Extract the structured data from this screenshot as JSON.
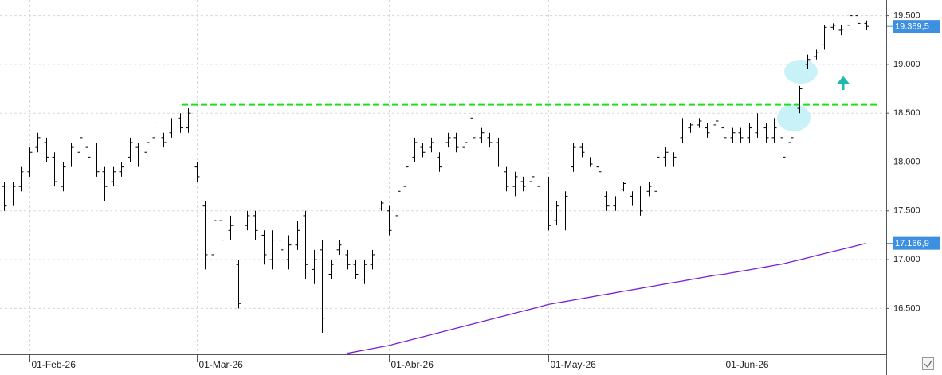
{
  "chart_data": {
    "type": "ohlc",
    "categories": [
      null,
      null,
      null,
      "01-Feb-26",
      null,
      null,
      null,
      null,
      null,
      null,
      null,
      null,
      null,
      null,
      null,
      null,
      null,
      null,
      null,
      null,
      null,
      null,
      null,
      "01-Mar-26",
      null,
      null,
      null,
      null,
      null,
      null,
      null,
      null,
      null,
      null,
      null,
      null,
      null,
      null,
      null,
      null,
      null,
      null,
      null,
      null,
      null,
      null,
      "01-Abr-26",
      null,
      null,
      null,
      null,
      null,
      null,
      null,
      null,
      null,
      null,
      null,
      null,
      null,
      null,
      null,
      null,
      null,
      null,
      "01-May-26",
      null,
      null,
      null,
      null,
      null,
      null,
      null,
      null,
      null,
      null,
      null,
      null,
      null,
      null,
      null,
      null,
      null,
      null,
      null,
      null,
      "01-Jun-26",
      null,
      null,
      null,
      null,
      null,
      null,
      null,
      null,
      null,
      null,
      null,
      null,
      null,
      null,
      null,
      null,
      null
    ],
    "ohlc": {
      "color": "#000000",
      "open": [
        17750,
        17600,
        17750,
        17900,
        18150,
        18200,
        18050,
        17750,
        18000,
        18100,
        18150,
        18000,
        17900,
        17800,
        17900,
        18050,
        18150,
        18100,
        18250,
        18250,
        18300,
        18450,
        18350,
        17950,
        17550,
        17050,
        17400,
        17300,
        16950,
        17350,
        17450,
        17250,
        17000,
        17200,
        17000,
        17150,
        17450,
        16900,
        17100,
        16850,
        17100,
        17050,
        16950,
        16800,
        16950,
        17520,
        17500,
        17450,
        17750,
        18050,
        18150,
        18150,
        18050,
        18200,
        18250,
        18150,
        18450,
        18250,
        18250,
        18200,
        17900,
        17750,
        17800,
        17800,
        17750,
        17600,
        17400,
        17600,
        17950,
        18150,
        18000,
        17950,
        17650,
        17550,
        17720,
        17650,
        17600,
        17700,
        17700,
        18050,
        18000,
        18250,
        18350,
        18380,
        18350,
        18380,
        18350,
        18250,
        18300,
        18250,
        18300,
        18350,
        18250,
        18250,
        18200,
        18550,
        19000,
        19080,
        19200,
        19380,
        19350,
        19400,
        19500,
        19420
      ],
      "high": [
        17800,
        17800,
        17950,
        18150,
        18300,
        18250,
        18100,
        18000,
        18200,
        18300,
        18200,
        18200,
        17950,
        17950,
        18000,
        18250,
        18200,
        18250,
        18450,
        18300,
        18450,
        18500,
        18550,
        18000,
        17600,
        17500,
        17700,
        17450,
        17000,
        17500,
        17500,
        17300,
        17300,
        17250,
        17250,
        17400,
        17500,
        17100,
        17200,
        17000,
        17200,
        17100,
        17000,
        17000,
        17100,
        17600,
        17550,
        17750,
        18000,
        18250,
        18200,
        18250,
        18100,
        18300,
        18300,
        18250,
        18500,
        18350,
        18300,
        18250,
        17950,
        17900,
        17850,
        17900,
        17800,
        17850,
        17600,
        17700,
        18200,
        18200,
        18050,
        18000,
        17700,
        17650,
        17800,
        17700,
        17750,
        17800,
        18100,
        18150,
        18100,
        18450,
        18400,
        18450,
        18400,
        18450,
        18400,
        18350,
        18350,
        18400,
        18500,
        18400,
        18450,
        18300,
        18300,
        18780,
        19100,
        19150,
        19400,
        19420,
        19400,
        19560,
        19550,
        19450
      ],
      "low": [
        17500,
        17550,
        17700,
        17850,
        18100,
        18000,
        17750,
        17700,
        17950,
        18050,
        18000,
        17850,
        17600,
        17750,
        17850,
        18000,
        17950,
        18050,
        18200,
        18150,
        18250,
        18300,
        18300,
        17800,
        16900,
        16900,
        17100,
        17200,
        16500,
        17300,
        17200,
        16950,
        16900,
        17000,
        16900,
        17100,
        16800,
        16750,
        16250,
        16800,
        17050,
        16900,
        16800,
        16750,
        16900,
        17500,
        17250,
        17400,
        17700,
        18000,
        18050,
        18100,
        17900,
        18150,
        18100,
        18100,
        18100,
        18200,
        18150,
        17950,
        17700,
        17650,
        17700,
        17750,
        17550,
        17300,
        17350,
        17300,
        17900,
        18050,
        17950,
        17850,
        17500,
        17500,
        17700,
        17550,
        17450,
        17650,
        17650,
        17950,
        17950,
        18200,
        18300,
        18350,
        18250,
        18350,
        18100,
        18200,
        18200,
        18200,
        18250,
        18200,
        18200,
        17950,
        18150,
        18500,
        18950,
        19050,
        19150,
        19350,
        19300,
        19350,
        19350,
        19350
      ],
      "close": [
        17550,
        17750,
        17900,
        18100,
        18250,
        18050,
        17800,
        17950,
        18150,
        18250,
        18050,
        17900,
        17750,
        17900,
        17950,
        18200,
        18000,
        18200,
        18400,
        18200,
        18400,
        18350,
        18500,
        17850,
        17050,
        17400,
        17200,
        17350,
        16550,
        17450,
        17300,
        17050,
        17200,
        17100,
        17150,
        17300,
        16950,
        17000,
        16400,
        16950,
        17150,
        16950,
        16850,
        16950,
        17050,
        17580,
        17300,
        17700,
        17950,
        18200,
        18100,
        18200,
        17950,
        18250,
        18150,
        18200,
        18250,
        18300,
        18200,
        18000,
        17750,
        17850,
        17750,
        17850,
        17600,
        17350,
        17550,
        17650,
        18150,
        18100,
        17980,
        17900,
        17550,
        17600,
        17780,
        17600,
        17500,
        17750,
        18050,
        18100,
        18050,
        18400,
        18380,
        18420,
        18300,
        18420,
        18250,
        18300,
        18250,
        18350,
        18400,
        18250,
        18350,
        18050,
        18250,
        18750,
        19050,
        19120,
        19380,
        19400,
        19360,
        19500,
        19420,
        19389.5
      ]
    },
    "lines": [
      {
        "color": "#7b1fd6",
        "values": [
          null,
          null,
          null,
          null,
          null,
          null,
          null,
          null,
          null,
          null,
          null,
          null,
          null,
          null,
          null,
          null,
          null,
          null,
          null,
          null,
          null,
          null,
          null,
          null,
          null,
          null,
          null,
          null,
          null,
          null,
          null,
          null,
          null,
          null,
          null,
          null,
          null,
          null,
          null,
          null,
          null,
          16040,
          16056,
          16072,
          16088,
          16104,
          16120,
          16142,
          16164,
          16186,
          16208,
          16230,
          16252,
          16274,
          16296,
          16318,
          16340,
          16362,
          16384,
          16406,
          16428,
          16450,
          16472,
          16494,
          16516,
          16540,
          16555,
          16570,
          16585,
          16600,
          16615,
          16630,
          16645,
          16660,
          16675,
          16690,
          16705,
          16720,
          16735,
          16750,
          16765,
          16780,
          16795,
          16810,
          16825,
          16840,
          16850,
          16865,
          16880,
          16895,
          16910,
          16925,
          16940,
          16955,
          16976,
          16997,
          17018,
          17040,
          17061,
          17082,
          17103,
          17124,
          17146,
          17166.9
        ]
      }
    ],
    "resistance": {
      "value": 18590,
      "color": "#1fe01f"
    },
    "price_tags": [
      {
        "value": 19389.5,
        "label": "19.389,5",
        "color": "#3d8fe0"
      },
      {
        "value": 17166.9,
        "label": "17.166,9",
        "color": "#3d8fe0"
      }
    ],
    "ylim": [
      16030,
      19660
    ],
    "yticks": [
      {
        "value": 16500,
        "label": "16.500"
      },
      {
        "value": 17000,
        "label": "17.000"
      },
      {
        "value": 17500,
        "label": "17.500"
      },
      {
        "value": 18000,
        "label": "18.000"
      },
      {
        "value": 18500,
        "label": "18.500"
      },
      {
        "value": 19000,
        "label": "19.000"
      },
      {
        "value": 19500,
        "label": "19.500"
      }
    ],
    "grid": true
  }
}
